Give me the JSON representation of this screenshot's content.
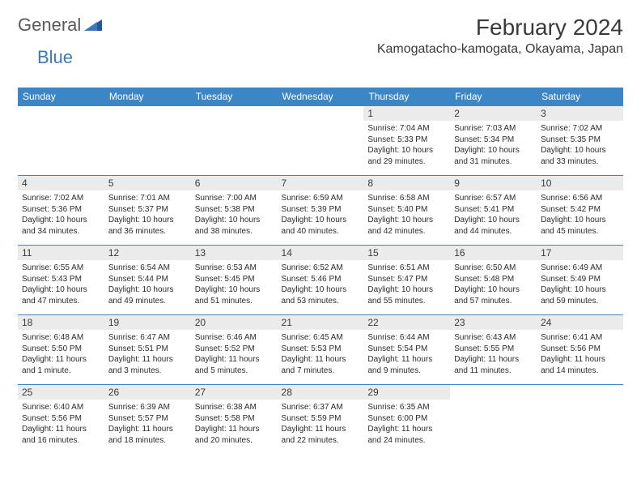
{
  "logo": {
    "general": "General",
    "blue": "Blue"
  },
  "title": "February 2024",
  "location": "Kamogatacho-kamogata, Okayama, Japan",
  "colors": {
    "header_bg": "#3d86c6",
    "header_text": "#ffffff",
    "day_num_bg": "#ebebeb",
    "border": "#3d86c6",
    "logo_gray": "#5a5a5a",
    "logo_blue": "#3a7ab8"
  },
  "weekdays": [
    "Sunday",
    "Monday",
    "Tuesday",
    "Wednesday",
    "Thursday",
    "Friday",
    "Saturday"
  ],
  "weeks": [
    [
      null,
      null,
      null,
      null,
      {
        "n": "1",
        "sr": "Sunrise: 7:04 AM",
        "ss": "Sunset: 5:33 PM",
        "dl": "Daylight: 10 hours and 29 minutes."
      },
      {
        "n": "2",
        "sr": "Sunrise: 7:03 AM",
        "ss": "Sunset: 5:34 PM",
        "dl": "Daylight: 10 hours and 31 minutes."
      },
      {
        "n": "3",
        "sr": "Sunrise: 7:02 AM",
        "ss": "Sunset: 5:35 PM",
        "dl": "Daylight: 10 hours and 33 minutes."
      }
    ],
    [
      {
        "n": "4",
        "sr": "Sunrise: 7:02 AM",
        "ss": "Sunset: 5:36 PM",
        "dl": "Daylight: 10 hours and 34 minutes."
      },
      {
        "n": "5",
        "sr": "Sunrise: 7:01 AM",
        "ss": "Sunset: 5:37 PM",
        "dl": "Daylight: 10 hours and 36 minutes."
      },
      {
        "n": "6",
        "sr": "Sunrise: 7:00 AM",
        "ss": "Sunset: 5:38 PM",
        "dl": "Daylight: 10 hours and 38 minutes."
      },
      {
        "n": "7",
        "sr": "Sunrise: 6:59 AM",
        "ss": "Sunset: 5:39 PM",
        "dl": "Daylight: 10 hours and 40 minutes."
      },
      {
        "n": "8",
        "sr": "Sunrise: 6:58 AM",
        "ss": "Sunset: 5:40 PM",
        "dl": "Daylight: 10 hours and 42 minutes."
      },
      {
        "n": "9",
        "sr": "Sunrise: 6:57 AM",
        "ss": "Sunset: 5:41 PM",
        "dl": "Daylight: 10 hours and 44 minutes."
      },
      {
        "n": "10",
        "sr": "Sunrise: 6:56 AM",
        "ss": "Sunset: 5:42 PM",
        "dl": "Daylight: 10 hours and 45 minutes."
      }
    ],
    [
      {
        "n": "11",
        "sr": "Sunrise: 6:55 AM",
        "ss": "Sunset: 5:43 PM",
        "dl": "Daylight: 10 hours and 47 minutes."
      },
      {
        "n": "12",
        "sr": "Sunrise: 6:54 AM",
        "ss": "Sunset: 5:44 PM",
        "dl": "Daylight: 10 hours and 49 minutes."
      },
      {
        "n": "13",
        "sr": "Sunrise: 6:53 AM",
        "ss": "Sunset: 5:45 PM",
        "dl": "Daylight: 10 hours and 51 minutes."
      },
      {
        "n": "14",
        "sr": "Sunrise: 6:52 AM",
        "ss": "Sunset: 5:46 PM",
        "dl": "Daylight: 10 hours and 53 minutes."
      },
      {
        "n": "15",
        "sr": "Sunrise: 6:51 AM",
        "ss": "Sunset: 5:47 PM",
        "dl": "Daylight: 10 hours and 55 minutes."
      },
      {
        "n": "16",
        "sr": "Sunrise: 6:50 AM",
        "ss": "Sunset: 5:48 PM",
        "dl": "Daylight: 10 hours and 57 minutes."
      },
      {
        "n": "17",
        "sr": "Sunrise: 6:49 AM",
        "ss": "Sunset: 5:49 PM",
        "dl": "Daylight: 10 hours and 59 minutes."
      }
    ],
    [
      {
        "n": "18",
        "sr": "Sunrise: 6:48 AM",
        "ss": "Sunset: 5:50 PM",
        "dl": "Daylight: 11 hours and 1 minute."
      },
      {
        "n": "19",
        "sr": "Sunrise: 6:47 AM",
        "ss": "Sunset: 5:51 PM",
        "dl": "Daylight: 11 hours and 3 minutes."
      },
      {
        "n": "20",
        "sr": "Sunrise: 6:46 AM",
        "ss": "Sunset: 5:52 PM",
        "dl": "Daylight: 11 hours and 5 minutes."
      },
      {
        "n": "21",
        "sr": "Sunrise: 6:45 AM",
        "ss": "Sunset: 5:53 PM",
        "dl": "Daylight: 11 hours and 7 minutes."
      },
      {
        "n": "22",
        "sr": "Sunrise: 6:44 AM",
        "ss": "Sunset: 5:54 PM",
        "dl": "Daylight: 11 hours and 9 minutes."
      },
      {
        "n": "23",
        "sr": "Sunrise: 6:43 AM",
        "ss": "Sunset: 5:55 PM",
        "dl": "Daylight: 11 hours and 11 minutes."
      },
      {
        "n": "24",
        "sr": "Sunrise: 6:41 AM",
        "ss": "Sunset: 5:56 PM",
        "dl": "Daylight: 11 hours and 14 minutes."
      }
    ],
    [
      {
        "n": "25",
        "sr": "Sunrise: 6:40 AM",
        "ss": "Sunset: 5:56 PM",
        "dl": "Daylight: 11 hours and 16 minutes."
      },
      {
        "n": "26",
        "sr": "Sunrise: 6:39 AM",
        "ss": "Sunset: 5:57 PM",
        "dl": "Daylight: 11 hours and 18 minutes."
      },
      {
        "n": "27",
        "sr": "Sunrise: 6:38 AM",
        "ss": "Sunset: 5:58 PM",
        "dl": "Daylight: 11 hours and 20 minutes."
      },
      {
        "n": "28",
        "sr": "Sunrise: 6:37 AM",
        "ss": "Sunset: 5:59 PM",
        "dl": "Daylight: 11 hours and 22 minutes."
      },
      {
        "n": "29",
        "sr": "Sunrise: 6:35 AM",
        "ss": "Sunset: 6:00 PM",
        "dl": "Daylight: 11 hours and 24 minutes."
      },
      null,
      null
    ]
  ]
}
